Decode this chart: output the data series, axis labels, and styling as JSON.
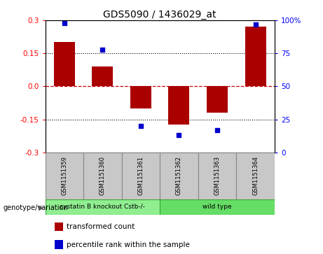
{
  "title": "GDS5090 / 1436029_at",
  "samples": [
    "GSM1151359",
    "GSM1151360",
    "GSM1151361",
    "GSM1151362",
    "GSM1151363",
    "GSM1151364"
  ],
  "bar_values": [
    0.2,
    0.09,
    -0.1,
    -0.175,
    -0.12,
    0.27
  ],
  "percentile_values": [
    98,
    78,
    20,
    13,
    17,
    97
  ],
  "ylim": [
    -0.3,
    0.3
  ],
  "yticks_left": [
    -0.3,
    -0.15,
    0.0,
    0.15,
    0.3
  ],
  "bar_color": "#AA0000",
  "dot_color": "#0000CC",
  "zero_line_color": "#CC0000",
  "grid_line_color": "#000000",
  "groups": [
    {
      "label": "cystatin B knockout Cstb-/-",
      "indices": [
        0,
        1,
        2
      ],
      "color": "#90EE90"
    },
    {
      "label": "wild type",
      "indices": [
        3,
        4,
        5
      ],
      "color": "#66DD66"
    }
  ],
  "genotype_label": "genotype/variation",
  "legend_bar_label": "transformed count",
  "legend_dot_label": "percentile rank within the sample",
  "sample_box_color": "#C8C8C8",
  "sample_box_edge": "#888888"
}
